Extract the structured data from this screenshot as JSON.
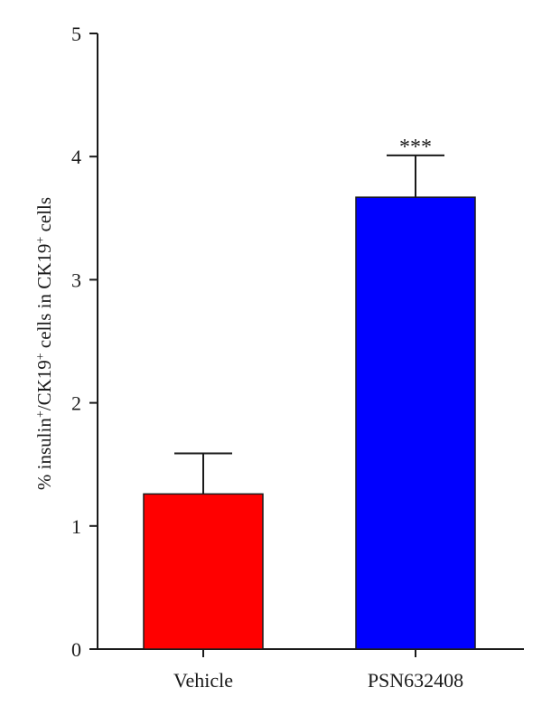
{
  "chart_data": {
    "type": "bar",
    "categories": [
      "Vehicle",
      "PSN632408"
    ],
    "values": [
      1.26,
      3.67
    ],
    "errors": [
      0.33,
      0.34
    ],
    "colors": [
      "#ff0000",
      "#0000ff"
    ],
    "annotations": [
      "",
      "***"
    ],
    "ylabel_parts": {
      "p1": "% insulin",
      "s1": "+",
      "p2": "/CK19",
      "s2": "+",
      "p3": " cells in CK19",
      "s3": "+",
      "p4": " cells"
    },
    "ylim": [
      0,
      5
    ],
    "yticks": [
      0,
      1,
      2,
      3,
      4,
      5
    ],
    "grid": false,
    "legend": "none"
  }
}
